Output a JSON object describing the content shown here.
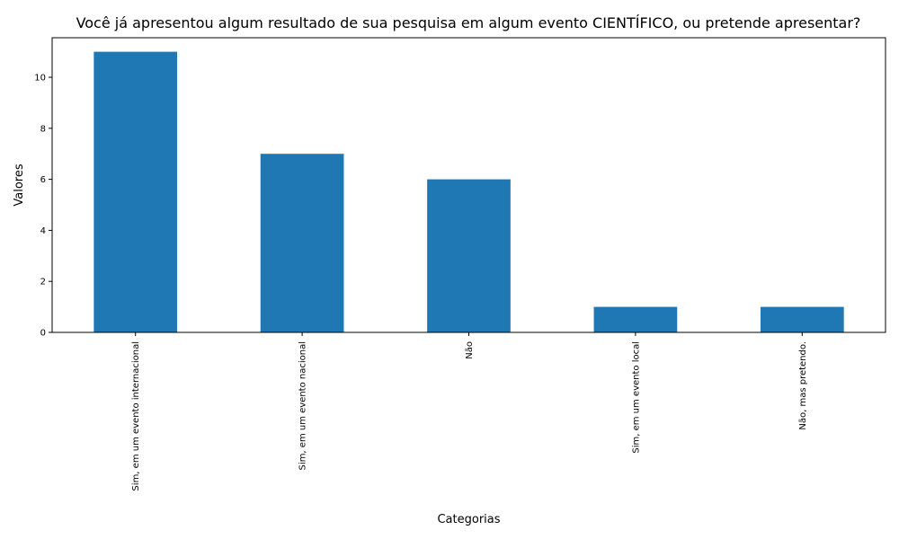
{
  "chart_data": {
    "type": "bar",
    "title": "Você já apresentou algum resultado de sua pesquisa em algum evento CIENTÍFICO, ou pretende apresentar?",
    "xlabel": "Categorias",
    "ylabel": "Valores",
    "categories": [
      "Sim, em um evento internacional",
      "Sim, em um evento nacional",
      "Não",
      "Sim, em um evento local",
      "Não, mas pretendo."
    ],
    "values": [
      11,
      7,
      6,
      1,
      1
    ],
    "ylim": [
      0,
      11.55
    ],
    "yticks": [
      0,
      2,
      4,
      6,
      8,
      10
    ],
    "grid": false,
    "legend": "none",
    "bar_color": "#1f77b4"
  }
}
